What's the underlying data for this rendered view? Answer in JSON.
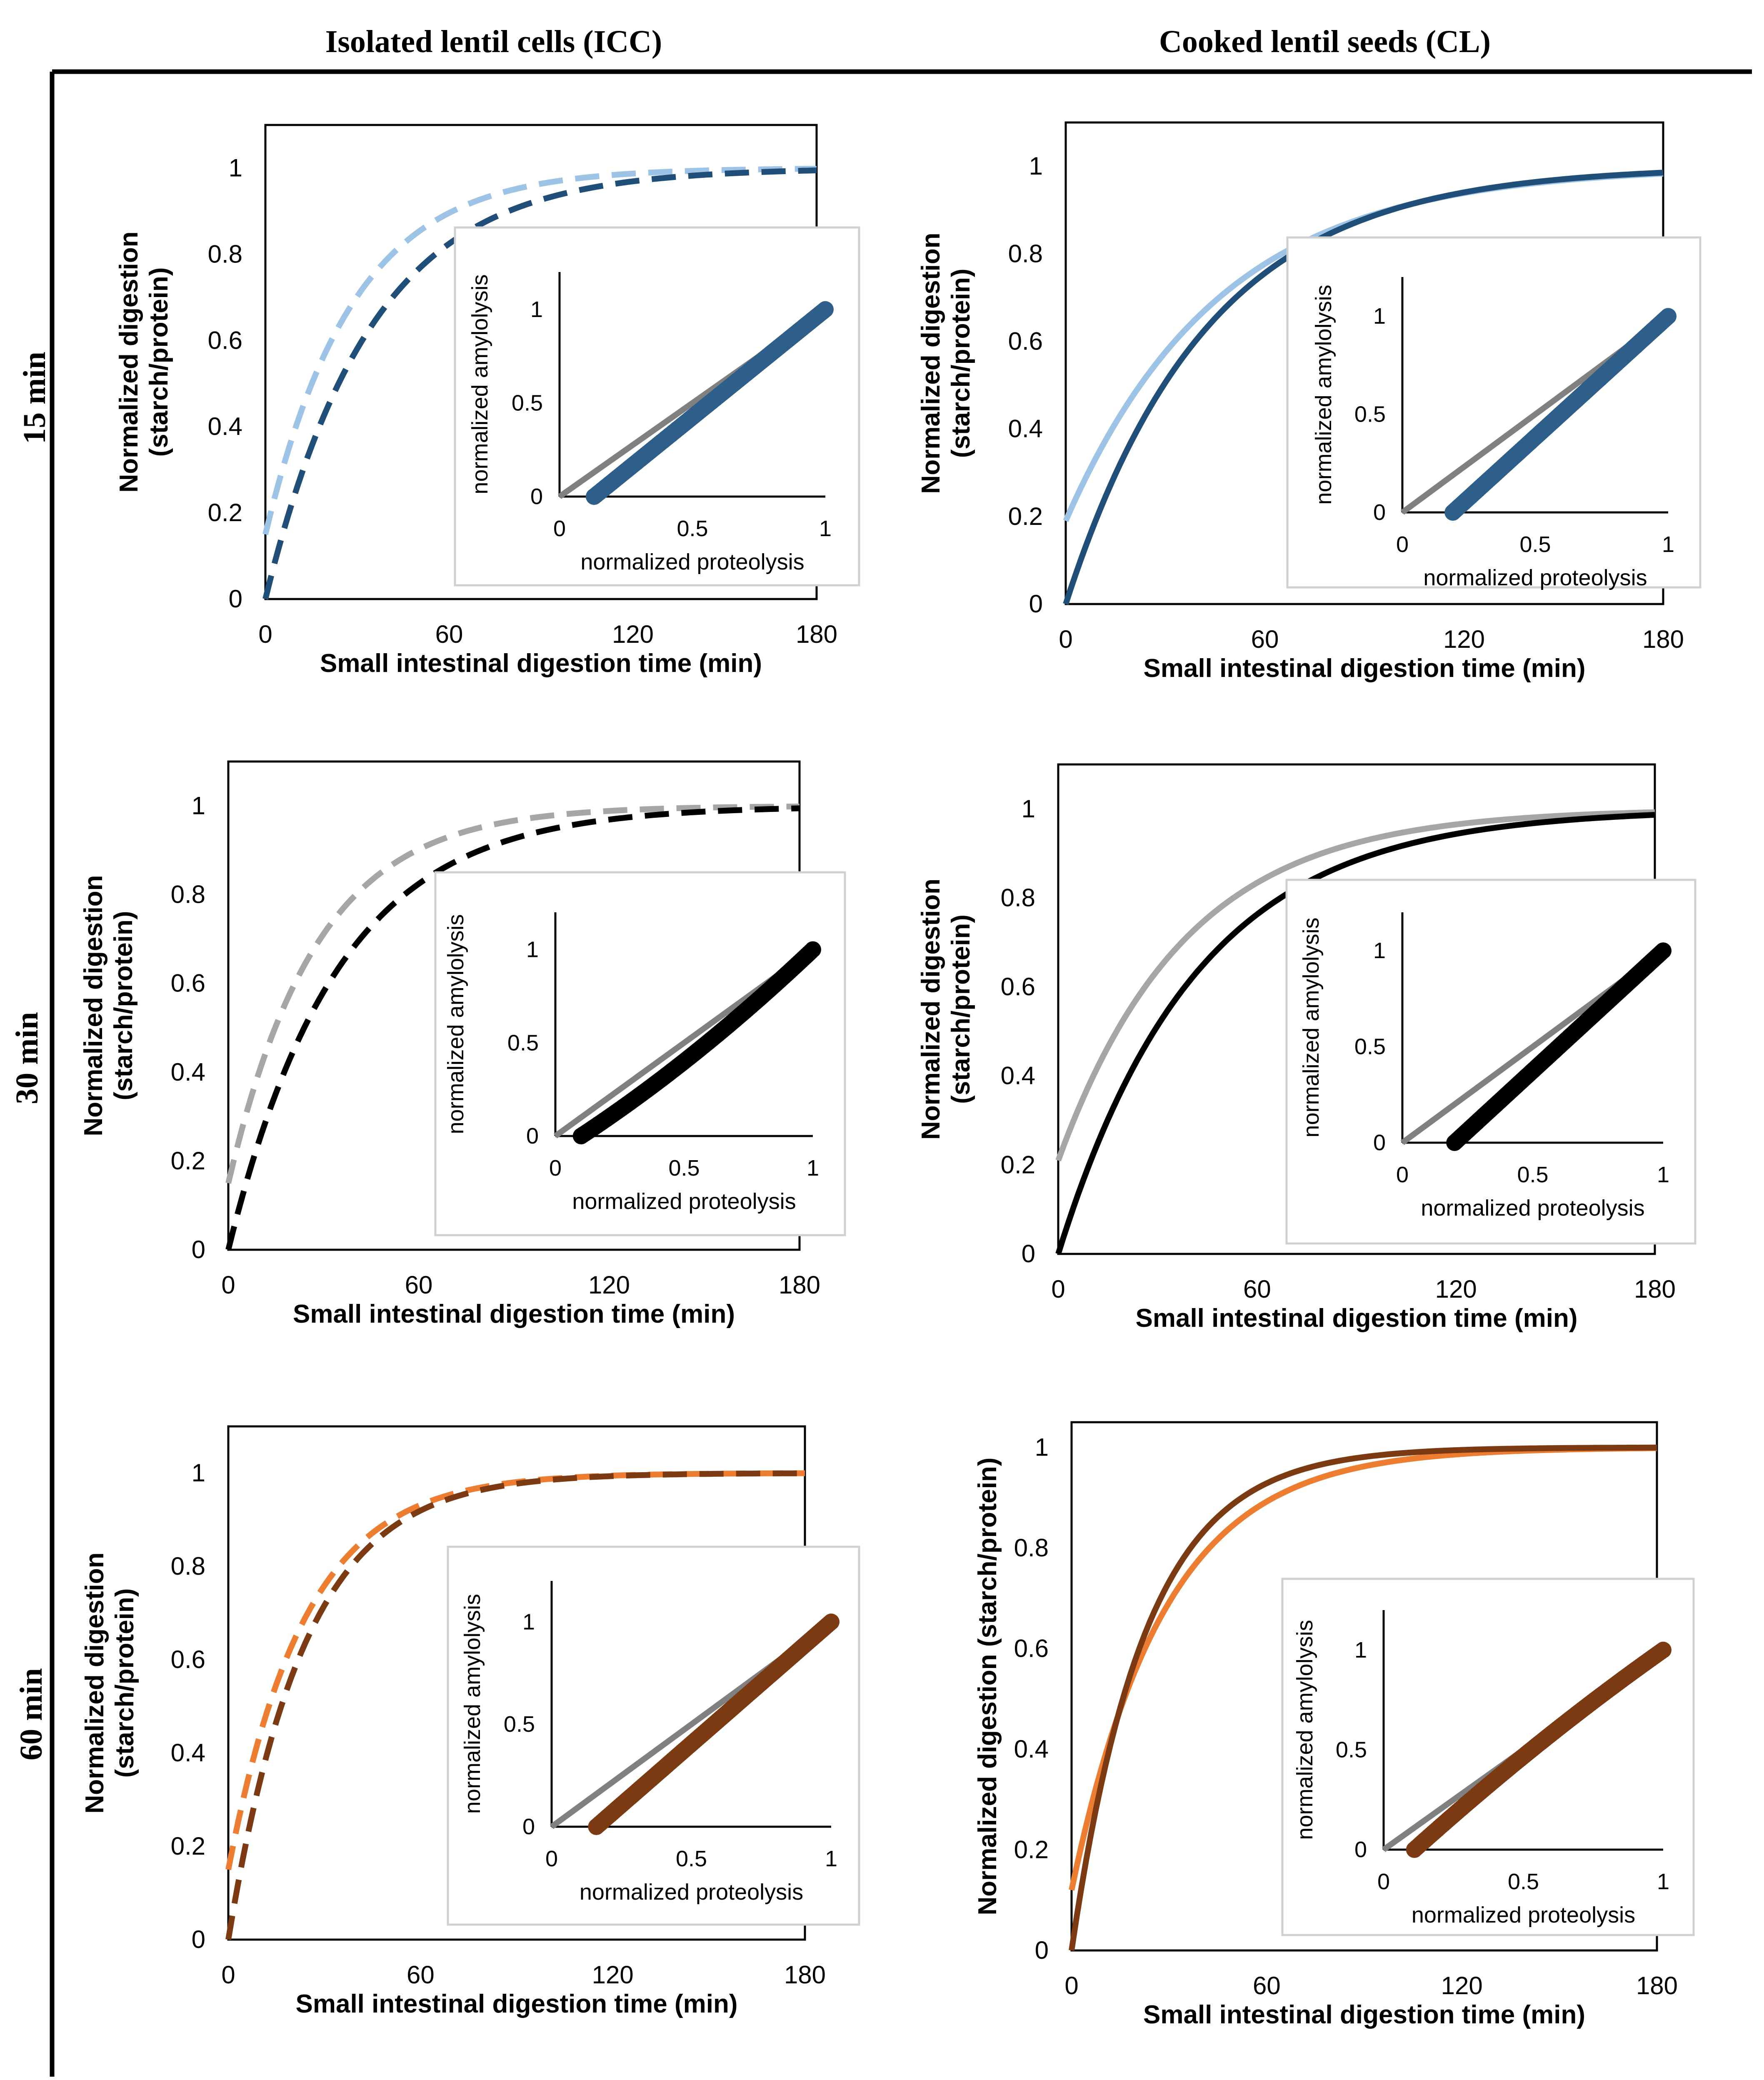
{
  "column_titles": [
    "Isolated lentil cells (ICC)",
    "Cooked lentil seeds (CL)"
  ],
  "row_labels": [
    "15 min",
    "30 min",
    "60 min"
  ],
  "chart_data": [
    {
      "id": "icc-15",
      "type": "line",
      "row": "15 min",
      "column": "Isolated lentil cells (ICC)",
      "xlabel": "Small intestinal digestion time (min)",
      "ylabel": [
        "Normalized digestion",
        "(starch/protein)"
      ],
      "xlim": [
        0,
        180
      ],
      "ylim": [
        0,
        1.1
      ],
      "xticks": [
        0,
        60,
        120,
        180
      ],
      "xtick_labels": [
        "0",
        "60",
        "120",
        "180"
      ],
      "yticks": [
        0,
        0.2,
        0.4,
        0.6,
        0.8,
        1
      ],
      "ytick_labels": [
        "0",
        "0.2",
        "0.4",
        "0.6",
        "0.8",
        "1"
      ],
      "series": [
        {
          "name": "proteolysis",
          "color": "#9dc3e6",
          "dashed": true,
          "y0": 0.15,
          "k": 0.035
        },
        {
          "name": "amylolysis",
          "color": "#1f4e79",
          "dashed": true,
          "y0": 0.0,
          "k": 0.029
        }
      ],
      "inset": {
        "xlabel": "normalized proteolysis",
        "ylabel": "normalized amylolysis",
        "xlim": [
          0,
          1
        ],
        "ylim": [
          0,
          1.2
        ],
        "xticks": [
          0,
          0.5,
          1
        ],
        "xtick_labels": [
          "0",
          "0.5",
          "1"
        ],
        "yticks": [
          0,
          0.5,
          1
        ],
        "ytick_labels": [
          "0",
          "0.5",
          "1"
        ],
        "reference_line": {
          "from": [
            0,
            0
          ],
          "to": [
            1,
            1
          ],
          "color": "#808080"
        },
        "scatter": {
          "color": "#2e5f8a",
          "x_start": 0.13,
          "x_end": 1.0,
          "curvature": 0.0
        }
      }
    },
    {
      "id": "cl-15",
      "type": "line",
      "row": "15 min",
      "column": "Cooked lentil seeds (CL)",
      "xlabel": "Small intestinal digestion time (min)",
      "ylabel": [
        "Normalized digestion",
        "(starch/protein)"
      ],
      "xlim": [
        0,
        180
      ],
      "ylim": [
        0,
        1.1
      ],
      "xticks": [
        0,
        60,
        120,
        180
      ],
      "xtick_labels": [
        "0",
        "60",
        "120",
        "180"
      ],
      "yticks": [
        0,
        0.2,
        0.4,
        0.6,
        0.8,
        1
      ],
      "ytick_labels": [
        "0",
        "0.2",
        "0.4",
        "0.6",
        "0.8",
        "1"
      ],
      "series": [
        {
          "name": "proteolysis",
          "color": "#9dc3e6",
          "dashed": false,
          "y0": 0.19,
          "k": 0.0215
        },
        {
          "name": "amylolysis",
          "color": "#1f4e79",
          "dashed": false,
          "y0": 0.0,
          "k": 0.0235
        }
      ],
      "inset": {
        "xlabel": "normalized proteolysis",
        "ylabel": "normalized amylolysis",
        "xlim": [
          0,
          1
        ],
        "ylim": [
          0,
          1.2
        ],
        "xticks": [
          0,
          0.5,
          1
        ],
        "xtick_labels": [
          "0",
          "0.5",
          "1"
        ],
        "yticks": [
          0,
          0.5,
          1
        ],
        "ytick_labels": [
          "0",
          "0.5",
          "1"
        ],
        "reference_line": {
          "from": [
            0,
            0
          ],
          "to": [
            1,
            1
          ],
          "color": "#808080"
        },
        "scatter": {
          "color": "#2e5f8a",
          "x_start": 0.19,
          "x_end": 1.0,
          "curvature": 0.0
        }
      }
    },
    {
      "id": "icc-30",
      "type": "line",
      "row": "30 min",
      "column": "Isolated lentil cells (ICC)",
      "xlabel": "Small intestinal digestion time (min)",
      "ylabel": [
        "Normalized digestion",
        "(starch/protein)"
      ],
      "xlim": [
        0,
        180
      ],
      "ylim": [
        0,
        1.1
      ],
      "xticks": [
        0,
        60,
        120,
        180
      ],
      "xtick_labels": [
        "0",
        "60",
        "120",
        "180"
      ],
      "yticks": [
        0,
        0.2,
        0.4,
        0.6,
        0.8,
        1
      ],
      "ytick_labels": [
        "0",
        "0.2",
        "0.4",
        "0.6",
        "0.8",
        "1"
      ],
      "series": [
        {
          "name": "proteolysis",
          "color": "#a6a6a6",
          "dashed": true,
          "y0": 0.15,
          "k": 0.036
        },
        {
          "name": "amylolysis",
          "color": "#000000",
          "dashed": true,
          "y0": 0.0,
          "k": 0.029
        }
      ],
      "inset": {
        "xlabel": "normalized proteolysis",
        "ylabel": "normalized amylolysis",
        "xlim": [
          0,
          1
        ],
        "ylim": [
          0,
          1.2
        ],
        "xticks": [
          0,
          0.5,
          1
        ],
        "xtick_labels": [
          "0",
          "0.5",
          "1"
        ],
        "yticks": [
          0,
          0.5,
          1
        ],
        "ytick_labels": [
          "0",
          "0.5",
          "1"
        ],
        "reference_line": {
          "from": [
            0,
            0
          ],
          "to": [
            1,
            1
          ],
          "color": "#808080"
        },
        "scatter": {
          "color": "#000000",
          "x_start": 0.1,
          "x_end": 1.0,
          "curvature": 0.18
        }
      }
    },
    {
      "id": "cl-30",
      "type": "line",
      "row": "30 min",
      "column": "Cooked lentil seeds (CL)",
      "xlabel": "Small intestinal digestion time (min)",
      "ylabel": [
        "Normalized digestion",
        "(starch/protein)"
      ],
      "xlim": [
        0,
        180
      ],
      "ylim": [
        0,
        1.1
      ],
      "xticks": [
        0,
        60,
        120,
        180
      ],
      "xtick_labels": [
        "0",
        "60",
        "120",
        "180"
      ],
      "yticks": [
        0,
        0.2,
        0.4,
        0.6,
        0.8,
        1
      ],
      "ytick_labels": [
        "0",
        "0.2",
        "0.4",
        "0.6",
        "0.8",
        "1"
      ],
      "series": [
        {
          "name": "proteolysis",
          "color": "#a6a6a6",
          "dashed": false,
          "y0": 0.21,
          "k": 0.026
        },
        {
          "name": "amylolysis",
          "color": "#000000",
          "dashed": false,
          "y0": 0.0,
          "k": 0.024
        }
      ],
      "inset": {
        "xlabel": "normalized proteolysis",
        "ylabel": "normalized amylolysis",
        "xlim": [
          0,
          1
        ],
        "ylim": [
          0,
          1.2
        ],
        "xticks": [
          0,
          0.5,
          1
        ],
        "xtick_labels": [
          "0",
          "0.5",
          "1"
        ],
        "yticks": [
          0,
          0.5,
          1
        ],
        "ytick_labels": [
          "0",
          "0.5",
          "1"
        ],
        "reference_line": {
          "from": [
            0,
            0
          ],
          "to": [
            1,
            1
          ],
          "color": "#808080"
        },
        "scatter": {
          "color": "#000000",
          "x_start": 0.2,
          "x_end": 1.0,
          "curvature": 0.0
        }
      }
    },
    {
      "id": "icc-60",
      "type": "line",
      "row": "60 min",
      "column": "Isolated lentil cells (ICC)",
      "xlabel": "Small intestinal digestion time (min)",
      "ylabel": [
        "Normalized digestion",
        "(starch/protein)"
      ],
      "xlim": [
        0,
        180
      ],
      "ylim": [
        0,
        1.1
      ],
      "xticks": [
        0,
        60,
        120,
        180
      ],
      "xtick_labels": [
        "0",
        "60",
        "120",
        "180"
      ],
      "yticks": [
        0,
        0.2,
        0.4,
        0.6,
        0.8,
        1
      ],
      "ytick_labels": [
        "0",
        "0.2",
        "0.4",
        "0.6",
        "0.8",
        "1"
      ],
      "series": [
        {
          "name": "proteolysis",
          "color": "#ed7d31",
          "dashed": true,
          "y0": 0.15,
          "k": 0.042
        },
        {
          "name": "amylolysis",
          "color": "#7b3a12",
          "dashed": true,
          "y0": 0.0,
          "k": 0.042
        }
      ],
      "inset": {
        "xlabel": "normalized proteolysis",
        "ylabel": "normalized amylolysis",
        "xlim": [
          0,
          1
        ],
        "ylim": [
          0,
          1.2
        ],
        "xticks": [
          0,
          0.5,
          1
        ],
        "xtick_labels": [
          "0",
          "0.5",
          "1"
        ],
        "yticks": [
          0,
          0.5,
          1
        ],
        "ytick_labels": [
          "0",
          "0.5",
          "1"
        ],
        "reference_line": {
          "from": [
            0,
            0
          ],
          "to": [
            1,
            1
          ],
          "color": "#808080"
        },
        "scatter": {
          "color": "#7b3a12",
          "x_start": 0.16,
          "x_end": 1.0,
          "curvature": 0.0
        }
      }
    },
    {
      "id": "cl-60",
      "type": "line",
      "row": "60 min",
      "column": "Cooked lentil seeds (CL)",
      "xlabel": "Small intestinal digestion time (min)",
      "ylabel": [
        "Normalized digestion (starch/protein)"
      ],
      "xlim": [
        0,
        180
      ],
      "ylim": [
        0,
        1.05
      ],
      "xticks": [
        0,
        60,
        120,
        180
      ],
      "xtick_labels": [
        "0",
        "60",
        "120",
        "180"
      ],
      "yticks": [
        0,
        0.2,
        0.4,
        0.6,
        0.8,
        1
      ],
      "ytick_labels": [
        "0",
        "0.2",
        "0.4",
        "0.6",
        "0.8",
        "1"
      ],
      "series": [
        {
          "name": "proteolysis",
          "color": "#ed7d31",
          "dashed": false,
          "y0": 0.12,
          "k": 0.035
        },
        {
          "name": "amylolysis",
          "color": "#7b3a12",
          "dashed": false,
          "y0": 0.0,
          "k": 0.044
        }
      ],
      "inset": {
        "xlabel": "normalized proteolysis",
        "ylabel": "normalized amylolysis",
        "xlim": [
          0,
          1
        ],
        "ylim": [
          0,
          1.2
        ],
        "xticks": [
          0,
          0.5,
          1
        ],
        "xtick_labels": [
          "0",
          "0.5",
          "1"
        ],
        "yticks": [
          0,
          0.5,
          1
        ],
        "ytick_labels": [
          "0",
          "0.5",
          "1"
        ],
        "reference_line": {
          "from": [
            0,
            0
          ],
          "to": [
            1,
            1
          ],
          "color": "#808080"
        },
        "scatter": {
          "color": "#7b3a12",
          "x_start": 0.11,
          "x_end": 1.0,
          "curvature": -0.12
        }
      }
    }
  ]
}
